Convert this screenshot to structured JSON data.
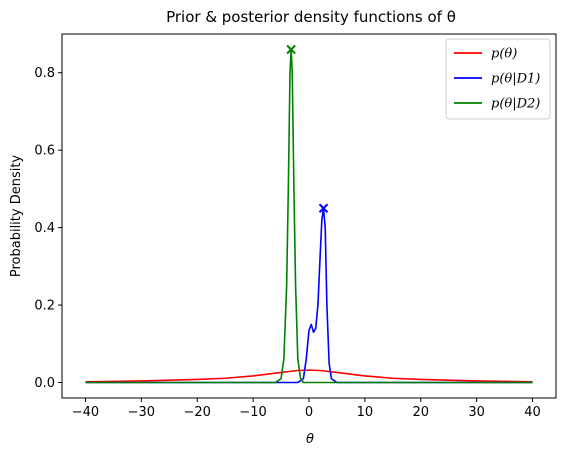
{
  "chart_data": {
    "type": "line",
    "title": "Prior & posterior density functions of θ",
    "xlabel": "θ",
    "ylabel": "Probability Density",
    "xlim": [
      -44.2,
      44.2
    ],
    "ylim": [
      -0.04,
      0.9
    ],
    "xticks": [
      -40,
      -30,
      -20,
      -10,
      0,
      10,
      20,
      30,
      40
    ],
    "yticks": [
      0.0,
      0.2,
      0.4,
      0.6,
      0.8
    ],
    "xtick_labels": [
      "−40",
      "−30",
      "−20",
      "−10",
      "0",
      "10",
      "20",
      "30",
      "40"
    ],
    "ytick_labels": [
      "0.0",
      "0.2",
      "0.4",
      "0.6",
      "0.8"
    ],
    "grid": false,
    "legend_position": "top-right",
    "series": [
      {
        "name": "p(θ)",
        "color": "#ff0000",
        "x": [
          -40,
          -30,
          -20,
          -15,
          -10,
          -5,
          -2,
          0,
          2,
          5,
          10,
          15,
          20,
          30,
          40
        ],
        "y": [
          0.002,
          0.004,
          0.008,
          0.011,
          0.017,
          0.026,
          0.031,
          0.032,
          0.031,
          0.026,
          0.017,
          0.011,
          0.008,
          0.004,
          0.002
        ]
      },
      {
        "name": "p(θ|D1)",
        "color": "#0000ff",
        "x": [
          -40,
          -2,
          -1,
          -0.5,
          0,
          0.4,
          0.8,
          1.2,
          1.6,
          2.0,
          2.3,
          2.6,
          2.9,
          3.2,
          3.6,
          4.0,
          5,
          40
        ],
        "y": [
          0.0,
          0.0,
          0.01,
          0.06,
          0.135,
          0.15,
          0.13,
          0.14,
          0.2,
          0.33,
          0.42,
          0.45,
          0.4,
          0.2,
          0.05,
          0.01,
          0.0,
          0.0
        ]
      },
      {
        "name": "p(θ|D2)",
        "color": "#008000",
        "x": [
          -40,
          -6,
          -5,
          -4.5,
          -4,
          -3.7,
          -3.4,
          -3.2,
          -3.0,
          -2.7,
          -2.4,
          -2.0,
          -1.5,
          -1,
          40
        ],
        "y": [
          0.0,
          0.0,
          0.01,
          0.06,
          0.25,
          0.5,
          0.8,
          0.86,
          0.8,
          0.5,
          0.25,
          0.06,
          0.01,
          0.0,
          0.0
        ]
      }
    ],
    "markers": [
      {
        "x": -3.2,
        "y": 0.86,
        "color": "#008000",
        "symbol": "x"
      },
      {
        "x": 2.6,
        "y": 0.45,
        "color": "#0000ff",
        "symbol": "x"
      }
    ]
  }
}
